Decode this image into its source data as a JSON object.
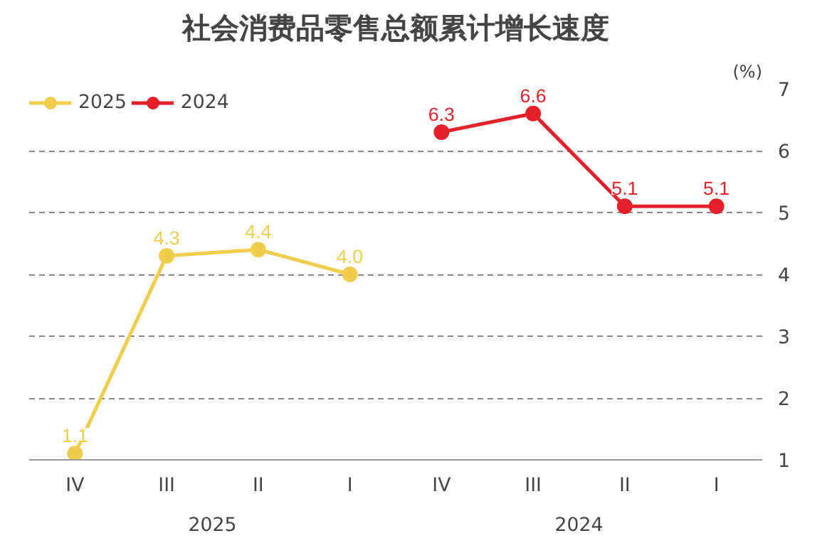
{
  "chart_data": {
    "type": "line",
    "title": "社会消费品零售总额累计增长速度",
    "ylabel": "(%)",
    "categories": [
      "IV",
      "III",
      "II",
      "I",
      "IV",
      "III",
      "II",
      "I"
    ],
    "series": [
      {
        "name": "2025",
        "color": "#f0cd4c",
        "values": [
          1.1,
          4.3,
          4.4,
          4.0,
          null,
          null,
          null,
          null
        ],
        "value_labels": [
          "1.1",
          "4.3",
          "4.4",
          "4.0",
          null,
          null,
          null,
          null
        ]
      },
      {
        "name": "2024",
        "color": "#e4202a",
        "values": [
          null,
          null,
          null,
          null,
          6.3,
          6.6,
          5.1,
          5.1
        ],
        "value_labels": [
          null,
          null,
          null,
          null,
          "6.3",
          "6.6",
          "5.1",
          "5.1"
        ]
      }
    ],
    "ylim": [
      1,
      7
    ],
    "yticks": [
      1,
      2,
      3,
      4,
      5,
      6,
      7
    ],
    "grid": "y",
    "marker": "circle",
    "legend": "top left",
    "annotations": [
      "2025",
      "2024"
    ]
  }
}
